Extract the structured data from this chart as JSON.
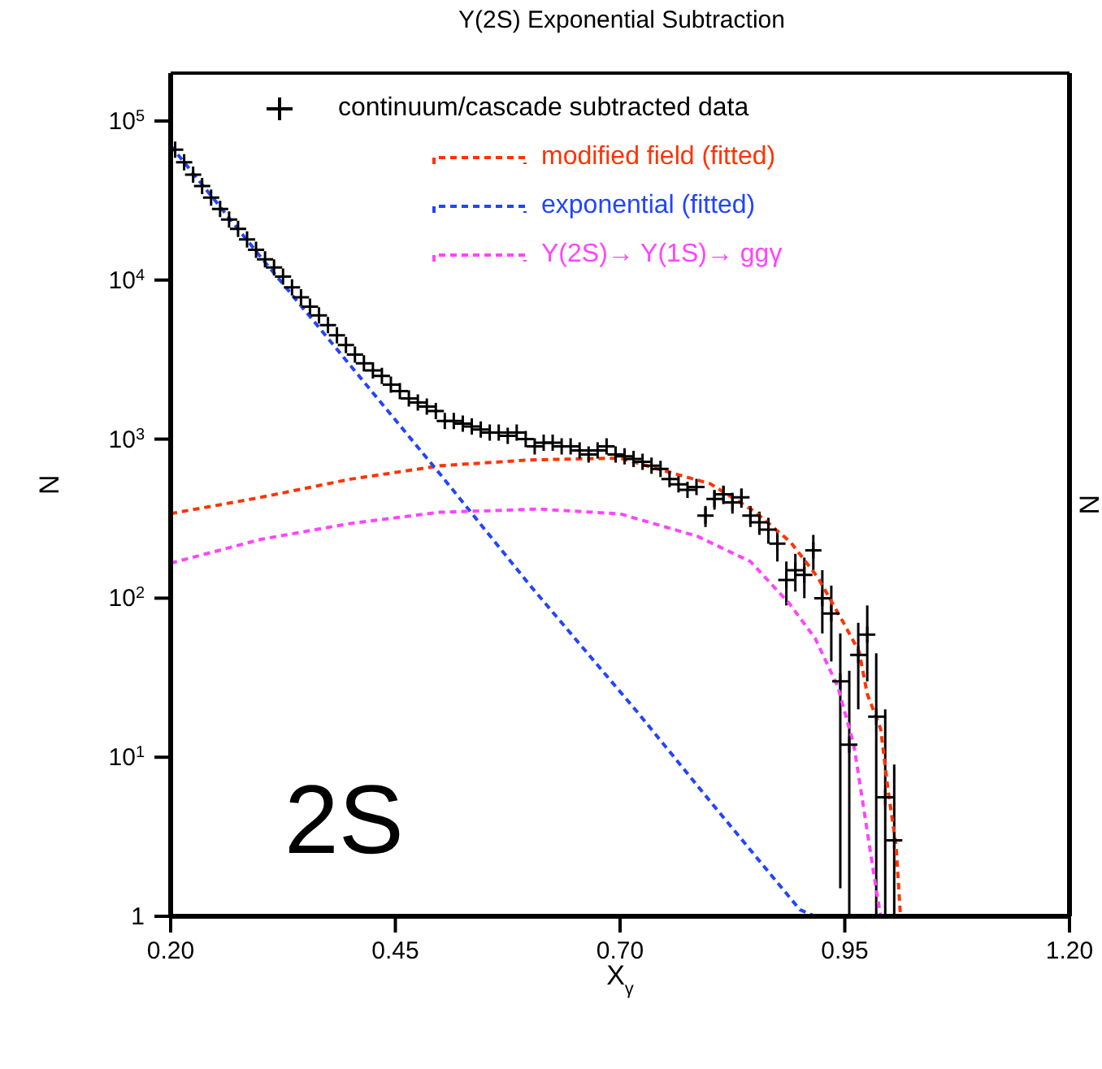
{
  "chart_data": {
    "type": "line",
    "title": "Υ(2S) Exponential Subtraction",
    "xlabel": "X$_{γ}$",
    "ylabel": "N",
    "y2label": "N",
    "xlim": [
      0.2,
      1.2
    ],
    "xticks": [
      {
        "value": 0.2,
        "label": "0.20"
      },
      {
        "value": 0.45,
        "label": "0.45"
      },
      {
        "value": 0.7,
        "label": "0.70"
      },
      {
        "value": 0.95,
        "label": "0.95"
      },
      {
        "value": 1.2,
        "label": "1.20"
      }
    ],
    "ylim": [
      1,
      200000
    ],
    "yticks": [
      1,
      {
        "value": 10,
        "label": "10$^{1}$"
      },
      {
        "value": 100,
        "label": "10$^{2}$"
      },
      {
        "value": 1000,
        "label": "10$^{3}$"
      },
      {
        "value": 10000,
        "label": "10$^{4}$"
      },
      {
        "value": 100000,
        "label": "10$^{5}$"
      }
    ],
    "log": "y",
    "legend": "top",
    "annotations": [
      "2S"
    ],
    "series": [
      {
        "name": "continuum/cascade subtracted data",
        "type": "scatter",
        "marker": "cross",
        "color": "#000000",
        "x": [
          0.205,
          0.215,
          0.225,
          0.235,
          0.245,
          0.255,
          0.265,
          0.275,
          0.285,
          0.295,
          0.305,
          0.315,
          0.325,
          0.335,
          0.345,
          0.355,
          0.365,
          0.375,
          0.385,
          0.395,
          0.405,
          0.415,
          0.425,
          0.435,
          0.445,
          0.455,
          0.465,
          0.475,
          0.485,
          0.495,
          0.505,
          0.515,
          0.525,
          0.535,
          0.545,
          0.555,
          0.565,
          0.575,
          0.585,
          0.595,
          0.605,
          0.615,
          0.625,
          0.635,
          0.645,
          0.655,
          0.665,
          0.675,
          0.685,
          0.695,
          0.705,
          0.715,
          0.725,
          0.735,
          0.745,
          0.755,
          0.765,
          0.775,
          0.785,
          0.795,
          0.805,
          0.815,
          0.825,
          0.835,
          0.845,
          0.855,
          0.865,
          0.875,
          0.885,
          0.895,
          0.905,
          0.915,
          0.925,
          0.935,
          0.945,
          0.955,
          0.965,
          0.975,
          0.985,
          0.995,
          1.005
        ],
        "values": [
          66000,
          55000,
          46000,
          39000,
          33000,
          28000,
          24000,
          21000,
          18000,
          15500,
          13500,
          12000,
          10500,
          9000,
          7800,
          6800,
          6000,
          5200,
          4500,
          3900,
          3400,
          3000,
          2700,
          2500,
          2200,
          2000,
          1800,
          1700,
          1600,
          1500,
          1300,
          1300,
          1250,
          1200,
          1150,
          1100,
          1100,
          1050,
          1100,
          1000,
          900,
          950,
          950,
          900,
          900,
          850,
          800,
          850,
          900,
          800,
          780,
          750,
          720,
          680,
          650,
          560,
          520,
          480,
          500,
          330,
          420,
          450,
          400,
          430,
          330,
          300,
          270,
          220,
          130,
          150,
          140,
          200,
          100,
          80,
          30,
          12,
          44,
          59,
          18,
          5.6,
          3
        ],
        "errors": [
          null,
          null,
          null,
          null,
          null,
          null,
          null,
          null,
          null,
          null,
          null,
          null,
          null,
          null,
          null,
          null,
          null,
          null,
          null,
          null,
          null,
          null,
          null,
          null,
          null,
          null,
          null,
          null,
          null,
          null,
          null,
          null,
          null,
          null,
          null,
          null,
          null,
          null,
          null,
          null,
          null,
          null,
          null,
          null,
          null,
          null,
          null,
          null,
          null,
          null,
          null,
          null,
          null,
          null,
          null,
          null,
          null,
          null,
          null,
          50,
          60,
          60,
          60,
          60,
          50,
          50,
          50,
          50,
          [
            90,
            170
          ],
          [
            110,
            190
          ],
          [
            100,
            180
          ],
          [
            150,
            250
          ],
          [
            60,
            150
          ],
          [
            40,
            120
          ],
          [
            1.5,
            60
          ],
          [
            1,
            35
          ],
          [
            20,
            70
          ],
          [
            30,
            90
          ],
          [
            1,
            45
          ],
          [
            1,
            20
          ],
          [
            1,
            9
          ]
        ]
      },
      {
        "name": "modified field (fitted)",
        "line_style": "dashed",
        "color": "#ff3300",
        "x": [
          0.2,
          0.3,
          0.4,
          0.5,
          0.6,
          0.7,
          0.75,
          0.8,
          0.85,
          0.89,
          0.92,
          0.948,
          0.966,
          0.975,
          0.99,
          0.998,
          1.007,
          1.012
        ],
        "values": [
          340,
          430,
          560,
          680,
          740,
          760,
          630,
          525,
          350,
          224,
          135,
          71,
          46,
          25,
          15,
          6.3,
          2.8,
          1
        ]
      },
      {
        "name": "exponential (fitted)",
        "line_style": "dashed",
        "color": "#2244ff",
        "x": [
          0.2,
          0.3,
          0.4,
          0.5,
          0.6,
          0.72,
          0.8,
          0.9,
          0.917
        ],
        "values": [
          70000,
          14000,
          2900,
          600,
          120,
          19,
          5.3,
          1.1,
          1
        ]
      },
      {
        "name": "Υ(2S)→ Υ(1S)→ ggγ",
        "line_style": "dashed",
        "color": "#ff44ff",
        "x": [
          0.2,
          0.3,
          0.4,
          0.5,
          0.61,
          0.7,
          0.786,
          0.845,
          0.888,
          0.917,
          0.942,
          0.96,
          0.971,
          0.984,
          0.99
        ],
        "values": [
          166,
          234,
          295,
          347,
          363,
          339,
          245,
          170,
          93,
          56,
          28,
          12,
          4.8,
          1.6,
          1
        ]
      }
    ]
  }
}
